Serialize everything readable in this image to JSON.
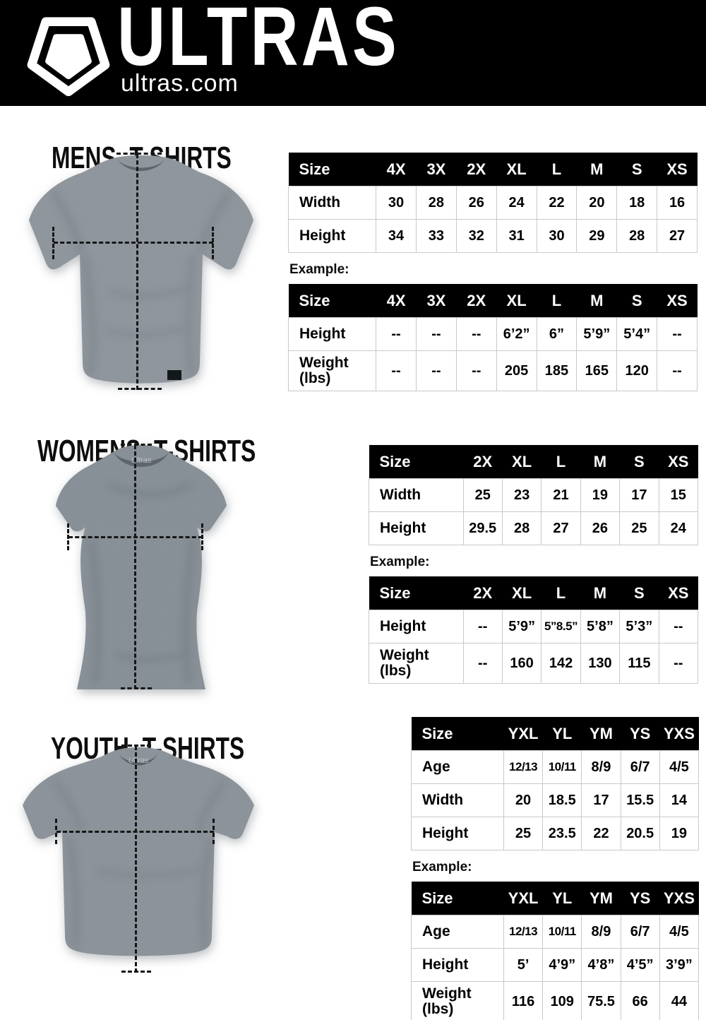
{
  "header": {
    "brand": "ULTRAS",
    "site": "ultras.com"
  },
  "sections": [
    {
      "id": "mens",
      "title": "MENS T-SHIRTS",
      "example_label": "Example:",
      "size_table": {
        "columns": [
          "Size",
          "4X",
          "3X",
          "2X",
          "XL",
          "L",
          "M",
          "S",
          "XS"
        ],
        "rows": [
          {
            "label": "Width",
            "values": [
              "30",
              "28",
              "26",
              "24",
              "22",
              "20",
              "18",
              "16"
            ]
          },
          {
            "label": "Height",
            "values": [
              "34",
              "33",
              "32",
              "31",
              "30",
              "29",
              "28",
              "27"
            ]
          }
        ]
      },
      "example_table": {
        "columns": [
          "Size",
          "4X",
          "3X",
          "2X",
          "XL",
          "L",
          "M",
          "S",
          "XS"
        ],
        "rows": [
          {
            "label": "Height",
            "values": [
              "--",
              "--",
              "--",
              "6’2”",
              "6”",
              "5’9”",
              "5’4”",
              "--"
            ]
          },
          {
            "label": [
              "Weight",
              "(lbs)"
            ],
            "values": [
              "--",
              "--",
              "--",
              "205",
              "185",
              "165",
              "120",
              "--"
            ]
          }
        ]
      }
    },
    {
      "id": "womens",
      "title": "WOMENS T-SHIRTS",
      "example_label": "Example:",
      "size_table": {
        "columns": [
          "Size",
          "2X",
          "XL",
          "L",
          "M",
          "S",
          "XS"
        ],
        "rows": [
          {
            "label": "Width",
            "values": [
              "25",
              "23",
              "21",
              "19",
              "17",
              "15"
            ]
          },
          {
            "label": "Height",
            "values": [
              "29.5",
              "28",
              "27",
              "26",
              "25",
              "24"
            ]
          }
        ]
      },
      "example_table": {
        "columns": [
          "Size",
          "2X",
          "XL",
          "L",
          "M",
          "S",
          "XS"
        ],
        "rows": [
          {
            "label": "Height",
            "values": [
              "--",
              "5’9”",
              "5”8.5”",
              "5’8”",
              "5’3”",
              "--"
            ]
          },
          {
            "label": [
              "Weight",
              "(lbs)"
            ],
            "values": [
              "--",
              "160",
              "142",
              "130",
              "115",
              "--"
            ]
          }
        ]
      }
    },
    {
      "id": "youth",
      "title": "YOUTH T-SHIRTS",
      "example_label": "Example:",
      "size_table": {
        "columns": [
          "Size",
          "YXL",
          "YL",
          "YM",
          "YS",
          "YXS"
        ],
        "rows": [
          {
            "label": "Age",
            "values": [
              "12/13",
              "10/11",
              "8/9",
              "6/7",
              "4/5"
            ]
          },
          {
            "label": "Width",
            "values": [
              "20",
              "18.5",
              "17",
              "15.5",
              "14"
            ]
          },
          {
            "label": "Height",
            "values": [
              "25",
              "23.5",
              "22",
              "20.5",
              "19"
            ]
          }
        ]
      },
      "example_table": {
        "columns": [
          "Size",
          "YXL",
          "YL",
          "YM",
          "YS",
          "YXS"
        ],
        "rows": [
          {
            "label": "Age",
            "values": [
              "12/13",
              "10/11",
              "8/9",
              "6/7",
              "4/5"
            ]
          },
          {
            "label": "Height",
            "values": [
              "5’",
              "4’9”",
              "4’8”",
              "4’5”",
              "3’9”"
            ]
          },
          {
            "label": [
              "Weight",
              "(lbs)"
            ],
            "values": [
              "116",
              "109",
              "75.5",
              "66",
              "44"
            ]
          }
        ]
      }
    }
  ],
  "colors": {
    "header_bg": "#000000",
    "table_header_bg": "#000000",
    "table_border": "#c9c9c9",
    "shirt_gray": "#8e959c",
    "measure_line": "#161616"
  }
}
